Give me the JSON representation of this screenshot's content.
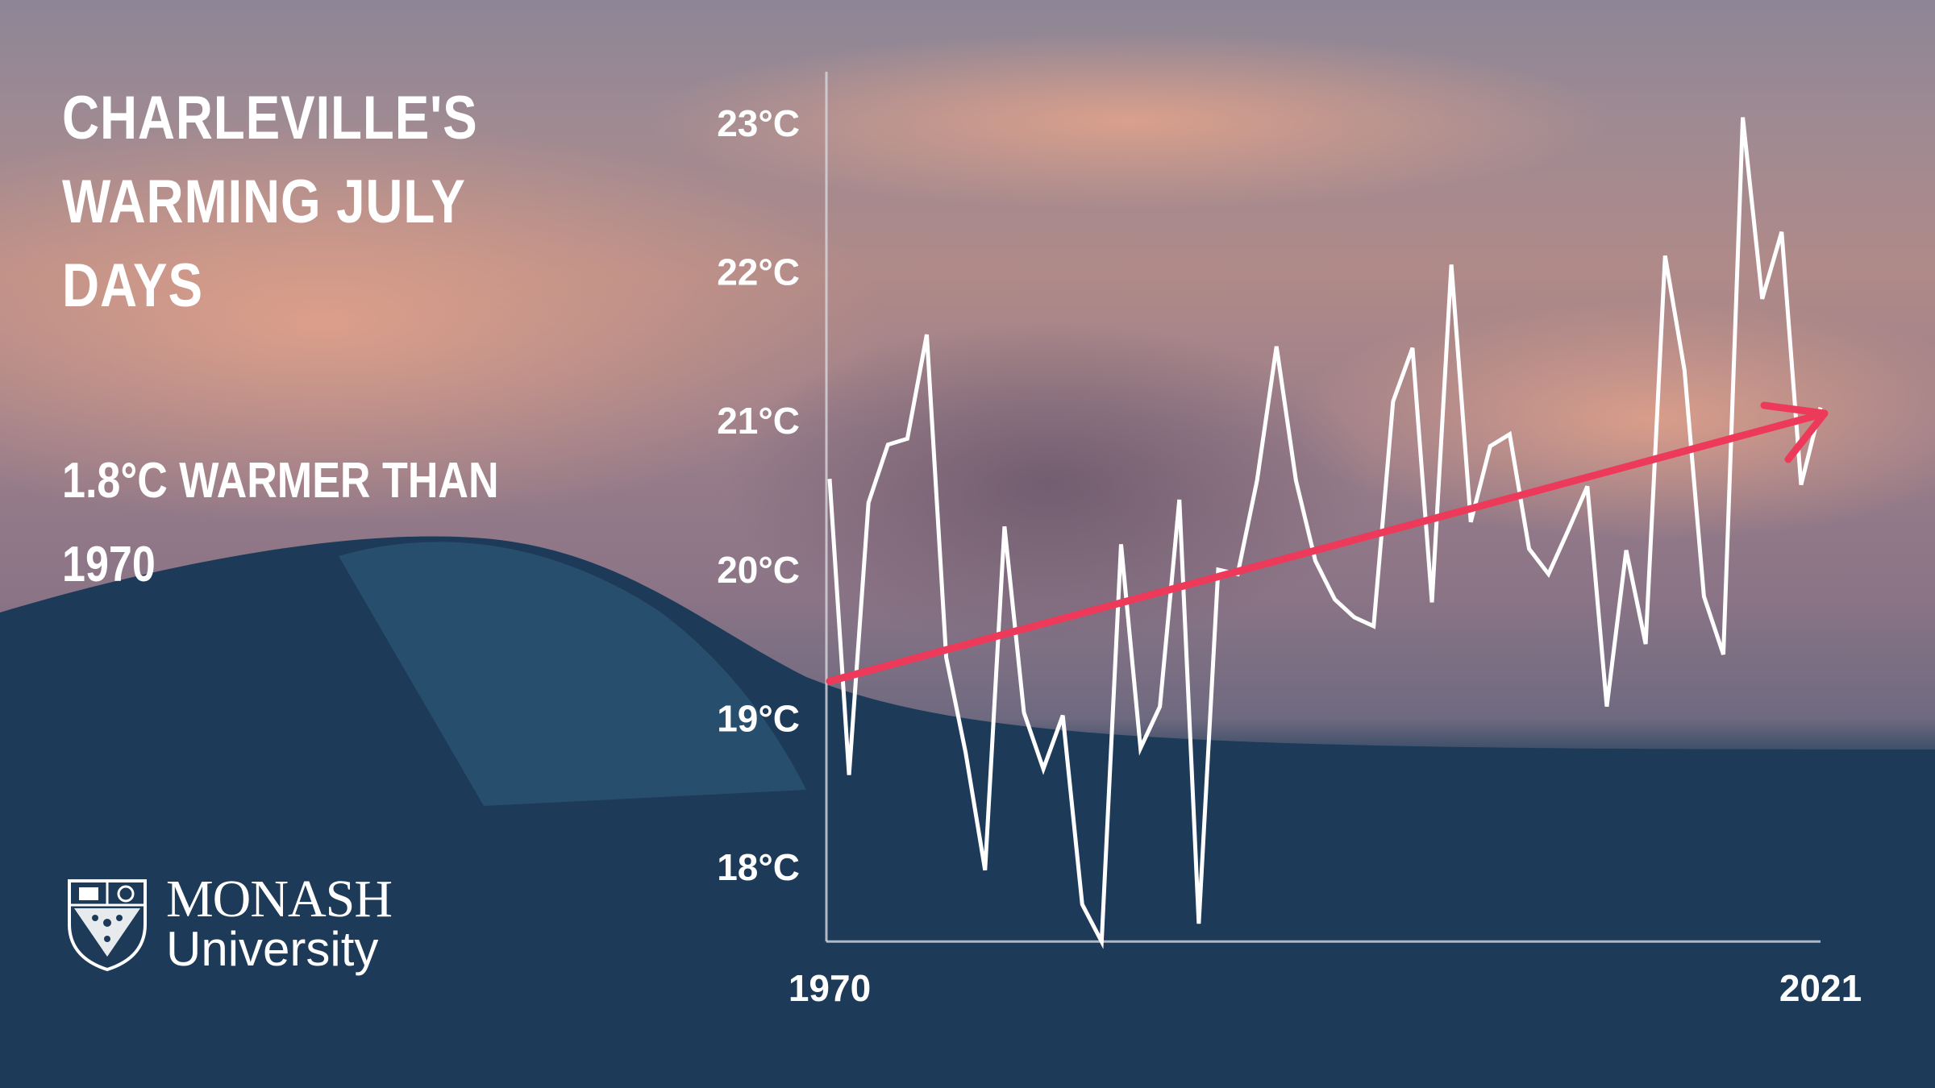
{
  "title": "CHARLEVILLE'S WARMING JULY DAYS",
  "subtitle": "1.8°C WARMER THAN 1970",
  "logo": {
    "line1": "MONASH",
    "line2": "University"
  },
  "colors": {
    "line": "#ffffff",
    "trend": "#ee3a5a",
    "axis": "#d8d8de"
  },
  "chart_data": {
    "type": "line",
    "title": "CHARLEVILLE'S WARMING JULY DAYS",
    "x": [
      1970,
      1971,
      1972,
      1973,
      1974,
      1975,
      1976,
      1977,
      1978,
      1979,
      1980,
      1981,
      1982,
      1983,
      1984,
      1985,
      1986,
      1987,
      1988,
      1989,
      1990,
      1991,
      1992,
      1993,
      1994,
      1995,
      1996,
      1997,
      1998,
      1999,
      2000,
      2001,
      2002,
      2003,
      2004,
      2005,
      2006,
      2007,
      2008,
      2009,
      2010,
      2011,
      2012,
      2013,
      2014,
      2015,
      2016,
      2017,
      2018,
      2019,
      2020,
      2021
    ],
    "values": [
      20.61,
      18.62,
      20.45,
      20.84,
      20.88,
      21.58,
      19.41,
      18.77,
      17.98,
      20.29,
      19.04,
      18.66,
      19.02,
      17.75,
      17.5,
      20.17,
      18.8,
      19.08,
      20.47,
      17.62,
      20.0,
      19.97,
      20.6,
      21.5,
      20.6,
      20.06,
      19.8,
      19.68,
      19.62,
      21.13,
      21.49,
      19.78,
      22.05,
      20.32,
      20.83,
      20.91,
      20.14,
      19.97,
      20.26,
      20.56,
      19.08,
      20.13,
      19.5,
      22.11,
      21.34,
      19.82,
      19.43,
      23.04,
      21.82,
      22.27,
      20.57,
      21.09
    ],
    "trend": {
      "start": [
        1970,
        19.25
      ],
      "end": [
        2021,
        21.05
      ]
    },
    "ylim": [
      17.5,
      23.4
    ],
    "yticks": [
      {
        "value": 23,
        "label": "23°C"
      },
      {
        "value": 22,
        "label": "22°C"
      },
      {
        "value": 21,
        "label": "21°C"
      },
      {
        "value": 20,
        "label": "20°C"
      },
      {
        "value": 19,
        "label": "19°C"
      },
      {
        "value": 18,
        "label": "18°C"
      }
    ],
    "xticks": [
      {
        "value": 1970,
        "label": "1970"
      },
      {
        "value": 2021,
        "label": "2021"
      }
    ],
    "grid": false
  }
}
